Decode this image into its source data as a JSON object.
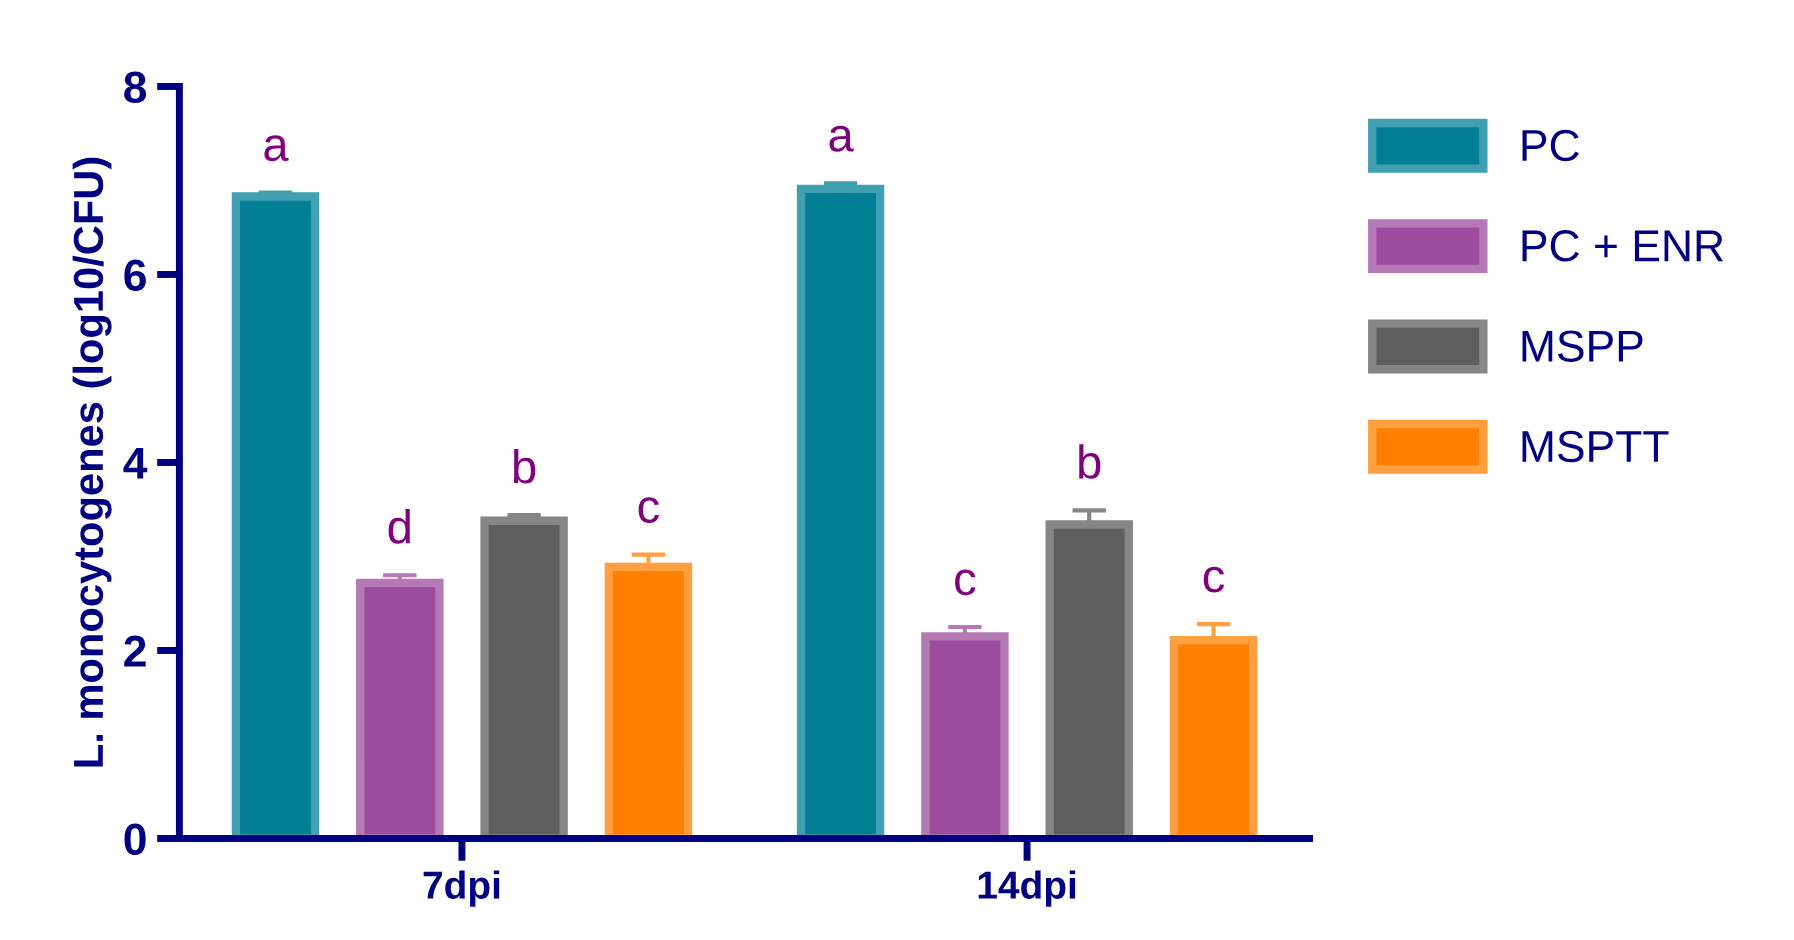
{
  "chart_data": {
    "type": "bar",
    "ylabel": "L. monocytogenes (log10/CFU)",
    "categories": [
      "7dpi",
      "14dpi"
    ],
    "series": [
      {
        "name": "PC",
        "color": "#007f95",
        "values": [
          6.83,
          6.91
        ],
        "errors": [
          0.04,
          0.06
        ]
      },
      {
        "name": "PC + ENR",
        "color": "#9c4c9c",
        "values": [
          2.72,
          2.15
        ],
        "errors": [
          0.08,
          0.1
        ]
      },
      {
        "name": "MSPP",
        "color": "#5e5e5e",
        "values": [
          3.38,
          3.34
        ],
        "errors": [
          0.06,
          0.15
        ]
      },
      {
        "name": "MSPTT",
        "color": "#ff8000",
        "values": [
          2.89,
          2.11
        ],
        "errors": [
          0.13,
          0.17
        ]
      }
    ],
    "annotations": [
      "a",
      "d",
      "b",
      "c",
      "a",
      "c",
      "b",
      "c"
    ],
    "ylim": [
      0,
      8
    ],
    "yticks": [
      0,
      2,
      4,
      6,
      8
    ],
    "grid": false,
    "legend": "right"
  }
}
